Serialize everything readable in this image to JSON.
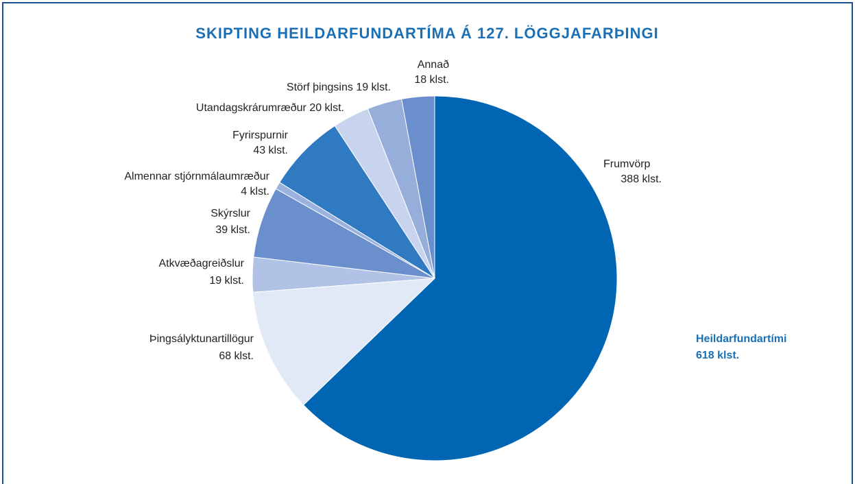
{
  "chart_data": {
    "type": "pie",
    "title": "SKIPTING HEILDARFUNDARTÍMA Á 127. LÖGGJAFARÞINGI",
    "categories": [
      "Frumvörp",
      "Þingsályktunartillögur",
      "Atkvæðagreiðslur",
      "Skýrslur",
      "Almennar stjórnmálaumræður",
      "Fyrirspurnir",
      "Utandagskrárumræður",
      "Störf þingsins",
      "Annað"
    ],
    "values": [
      388,
      68,
      19,
      39,
      4,
      43,
      20,
      19,
      18
    ],
    "value_labels": [
      "388 klst.",
      "68 klst.",
      "19 klst.",
      "39 klst.",
      "4 klst.",
      "43 klst.",
      "20 klst.",
      "19 klst.",
      "18 klst."
    ],
    "colors": [
      "#0066b3",
      "#e1e8f6",
      "#b0c2e6",
      "#6b8fcc",
      "#9bb2df",
      "#2f7ac1",
      "#c8d4ee",
      "#97aedb",
      "#6b8fcc"
    ],
    "total_label": "Heildarfundartími",
    "total_value_label": "618 klst."
  }
}
